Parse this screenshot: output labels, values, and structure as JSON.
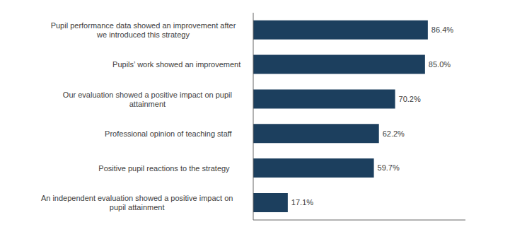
{
  "chart_data": {
    "type": "bar",
    "orientation": "horizontal",
    "categories": [
      "An independent evaluation showed a positive impact on\npupil attainment",
      "Positive pupil reactions to the strategy",
      "Professional opinion of teaching staff",
      "Our evaluation showed a positive impact on pupil\nattainment",
      "Pupils’ work showed an improvement",
      "Pupil performance data showed an improvement after\nwe introduced this strategy"
    ],
    "values": [
      17.1,
      59.7,
      62.2,
      70.2,
      85.0,
      86.4
    ],
    "value_labels": [
      "17.1%",
      "59.7%",
      "62.2%",
      "70.2%",
      "85.0%",
      "86.4%"
    ],
    "color": "#1c3f5e",
    "xlim": [
      0,
      105
    ],
    "data_labels": true,
    "tick_labels": "y",
    "grid": false
  }
}
